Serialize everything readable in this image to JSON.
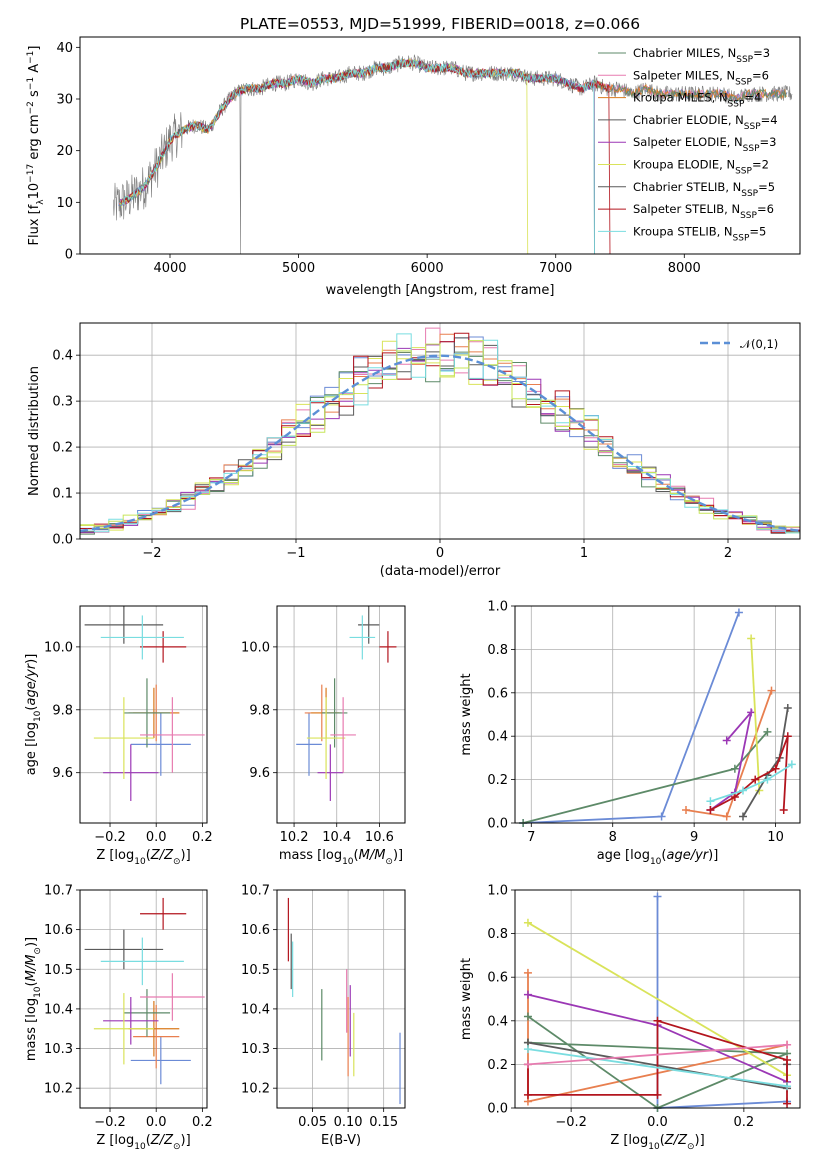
{
  "colors": [
    "#6b8bd6",
    "#e87f4f",
    "#d97a1c",
    "#5d8a68",
    "#9b37b5",
    "#d9e35a",
    "#5a5a5a",
    "#b3151e",
    "#79dde0",
    "#e77bb0",
    "#c7e55a"
  ],
  "chart_data": [
    {
      "id": "spectrum",
      "type": "line",
      "title": "PLATE=0553, MJD=51999, FIBERID=0018, z=0.066",
      "xlabel": "wavelength [Angstrom, rest frame]",
      "ylabel": "Flux [f_λ10^-17 erg cm^-2 s^-1 A^-1]",
      "xlim": [
        3300,
        8900
      ],
      "ylim": [
        0,
        42
      ],
      "xticks": [
        "4000",
        "5000",
        "6000",
        "7000",
        "8000"
      ],
      "yticks": [
        "0",
        "10",
        "20",
        "30",
        "40"
      ],
      "legend": [
        "Chabrier MILES, N_SSP=3",
        "Salpeter MILES, N_SSP=6",
        "Kroupa MILES, N_SSP=4",
        "Chabrier ELODIE, N_SSP=4",
        "Salpeter ELODIE, N_SSP=3",
        "Kroupa ELODIE, N_SSP=2",
        "Chabrier STELIB, N_SSP=5",
        "Salpeter STELIB, N_SSP=6",
        "Kroupa STELIB, N_SSP=5"
      ],
      "continuum": {
        "x": [
          3550,
          3700,
          3800,
          3900,
          4000,
          4100,
          4200,
          4300,
          4400,
          4500,
          4600,
          4700,
          4800,
          4900,
          5000,
          5100,
          5200,
          5300,
          5400,
          5500,
          5600,
          5700,
          5800,
          5900,
          6000,
          6100,
          6200,
          6300,
          6400,
          6500,
          6600,
          6700,
          6800,
          6900,
          7000,
          7100,
          7200,
          7300,
          7400,
          7500,
          7600,
          7700,
          7800,
          7900,
          8000,
          8100,
          8200,
          8300,
          8400,
          8500,
          8600,
          8800
        ],
        "y": [
          9,
          11,
          13,
          17,
          22,
          24,
          25,
          24,
          28,
          31,
          32,
          32,
          33,
          33,
          34,
          33,
          34,
          34,
          35,
          35,
          36,
          36,
          37,
          37,
          36,
          36,
          36,
          35,
          35,
          35,
          35,
          35,
          34,
          34,
          34,
          33,
          32,
          33,
          32,
          32,
          31,
          32,
          31,
          31,
          31,
          31,
          31,
          31,
          30,
          31,
          31,
          31
        ]
      }
    },
    {
      "id": "residuals",
      "type": "histogram",
      "xlabel": "(data-model)/error",
      "ylabel": "Normed distribution",
      "xlim": [
        -2.5,
        2.5
      ],
      "ylim": [
        0,
        0.47
      ],
      "xticks": [
        "−2",
        "−1",
        "0",
        "1",
        "2"
      ],
      "yticks": [
        "0.0",
        "0.1",
        "0.2",
        "0.3",
        "0.4"
      ],
      "legend": [
        "𝒩(0,1)"
      ]
    },
    {
      "id": "age-vs-Z",
      "type": "scatter",
      "xlabel": "Z [log10(Z/Z⊙)]",
      "ylabel": "age  [log10(age/yr)]",
      "xlim": [
        -0.33,
        0.22
      ],
      "ylim": [
        9.44,
        10.13
      ],
      "xticks": [
        "−0.2",
        "0.0",
        "0.2"
      ],
      "yticks": [
        "9.6",
        "9.8",
        "10.0"
      ],
      "points": [
        {
          "x": 0.02,
          "y": 9.69,
          "ex": 0.13,
          "ey": 0.1,
          "c": 0
        },
        {
          "x": 0.0,
          "y": 9.79,
          "ex": 0.1,
          "ey": 0.09,
          "c": 1
        },
        {
          "x": -0.01,
          "y": 9.79,
          "ex": 0.11,
          "ey": 0.08,
          "c": 2
        },
        {
          "x": -0.04,
          "y": 9.79,
          "ex": 0.1,
          "ey": 0.11,
          "c": 3
        },
        {
          "x": -0.11,
          "y": 9.6,
          "ex": 0.12,
          "ey": 0.09,
          "c": 4
        },
        {
          "x": -0.14,
          "y": 9.71,
          "ex": 0.13,
          "ey": 0.13,
          "c": 5
        },
        {
          "x": -0.14,
          "y": 10.07,
          "ex": 0.17,
          "ey": 0.06,
          "c": 6
        },
        {
          "x": 0.03,
          "y": 10.0,
          "ex": 0.1,
          "ey": 0.05,
          "c": 7
        },
        {
          "x": -0.06,
          "y": 10.03,
          "ex": 0.18,
          "ey": 0.07,
          "c": 8
        },
        {
          "x": 0.07,
          "y": 9.72,
          "ex": 0.14,
          "ey": 0.12,
          "c": 9
        }
      ]
    },
    {
      "id": "age-vs-mass",
      "type": "scatter",
      "xlabel": "mass [log10(M/M⊙)]",
      "ylabel": "",
      "xlim": [
        10.12,
        10.72
      ],
      "ylim": [
        9.44,
        10.13
      ],
      "xticks": [
        "10.2",
        "10.4",
        "10.6"
      ],
      "yticks": [
        "9.6",
        "9.8",
        "10.0"
      ],
      "points": [
        {
          "x": 10.27,
          "y": 9.69,
          "ex": 0.06,
          "ey": 0.1,
          "c": 0
        },
        {
          "x": 10.33,
          "y": 9.79,
          "ex": 0.08,
          "ey": 0.09,
          "c": 1
        },
        {
          "x": 10.35,
          "y": 9.79,
          "ex": 0.07,
          "ey": 0.08,
          "c": 2
        },
        {
          "x": 10.39,
          "y": 9.79,
          "ex": 0.06,
          "ey": 0.11,
          "c": 3
        },
        {
          "x": 10.37,
          "y": 9.6,
          "ex": 0.06,
          "ey": 0.09,
          "c": 4
        },
        {
          "x": 10.35,
          "y": 9.71,
          "ex": 0.09,
          "ey": 0.13,
          "c": 5
        },
        {
          "x": 10.55,
          "y": 10.07,
          "ex": 0.05,
          "ey": 0.06,
          "c": 6
        },
        {
          "x": 10.64,
          "y": 10.0,
          "ex": 0.04,
          "ey": 0.05,
          "c": 7
        },
        {
          "x": 10.52,
          "y": 10.03,
          "ex": 0.06,
          "ey": 0.07,
          "c": 8
        },
        {
          "x": 10.43,
          "y": 9.72,
          "ex": 0.06,
          "ey": 0.12,
          "c": 9
        }
      ]
    },
    {
      "id": "weight-vs-age",
      "type": "line",
      "xlabel": "age  [log10(age/yr)]",
      "ylabel": "mass weight",
      "xlim": [
        6.8,
        10.3
      ],
      "ylim": [
        0,
        1.0
      ],
      "xticks": [
        "7",
        "8",
        "9",
        "10"
      ],
      "yticks": [
        "0.0",
        "0.2",
        "0.4",
        "0.6",
        "0.8",
        "1.0"
      ],
      "series": [
        {
          "c": 0,
          "x": [
            6.9,
            8.6,
            9.55
          ],
          "y": [
            0.0,
            0.03,
            0.97
          ]
        },
        {
          "c": 1,
          "x": [
            8.9,
            9.4,
            9.95
          ],
          "y": [
            0.06,
            0.03,
            0.61
          ]
        },
        {
          "c": 3,
          "x": [
            6.9,
            9.5,
            9.9
          ],
          "y": [
            0.0,
            0.25,
            0.42
          ]
        },
        {
          "c": 4,
          "x": [
            9.4,
            9.7,
            9.5,
            9.2
          ],
          "y": [
            0.38,
            0.51,
            0.14,
            0.06
          ]
        },
        {
          "c": 5,
          "x": [
            9.7,
            9.8
          ],
          "y": [
            0.85,
            0.15
          ]
        },
        {
          "c": 6,
          "x": [
            9.6,
            9.9,
            10.05,
            10.15
          ],
          "y": [
            0.03,
            0.22,
            0.3,
            0.53
          ]
        },
        {
          "c": 7,
          "x": [
            9.2,
            9.5,
            9.75,
            10.0,
            10.15,
            10.1
          ],
          "y": [
            0.06,
            0.12,
            0.2,
            0.25,
            0.4,
            0.06
          ]
        },
        {
          "c": 8,
          "x": [
            9.2,
            9.6,
            9.9,
            10.2
          ],
          "y": [
            0.1,
            0.15,
            0.2,
            0.27
          ]
        }
      ]
    },
    {
      "id": "mass-vs-Z",
      "type": "scatter",
      "xlabel": "Z [log10(Z/Z⊙)]",
      "ylabel": "mass [log10(M/M⊙)]",
      "xlim": [
        -0.33,
        0.22
      ],
      "ylim": [
        10.15,
        10.7
      ],
      "xticks": [
        "−0.2",
        "0.0",
        "0.2"
      ],
      "yticks": [
        "10.2",
        "10.3",
        "10.4",
        "10.5",
        "10.6",
        "10.7"
      ],
      "points": [
        {
          "x": 0.02,
          "y": 10.27,
          "ex": 0.13,
          "ey": 0.06,
          "c": 0
        },
        {
          "x": 0.0,
          "y": 10.33,
          "ex": 0.1,
          "ey": 0.08,
          "c": 1
        },
        {
          "x": -0.01,
          "y": 10.35,
          "ex": 0.11,
          "ey": 0.07,
          "c": 2
        },
        {
          "x": -0.04,
          "y": 10.39,
          "ex": 0.1,
          "ey": 0.06,
          "c": 3
        },
        {
          "x": -0.11,
          "y": 10.37,
          "ex": 0.12,
          "ey": 0.06,
          "c": 4
        },
        {
          "x": -0.14,
          "y": 10.35,
          "ex": 0.13,
          "ey": 0.09,
          "c": 5
        },
        {
          "x": -0.14,
          "y": 10.55,
          "ex": 0.17,
          "ey": 0.05,
          "c": 6
        },
        {
          "x": 0.03,
          "y": 10.64,
          "ex": 0.1,
          "ey": 0.04,
          "c": 7
        },
        {
          "x": -0.06,
          "y": 10.52,
          "ex": 0.18,
          "ey": 0.06,
          "c": 8
        },
        {
          "x": 0.07,
          "y": 10.43,
          "ex": 0.14,
          "ey": 0.06,
          "c": 9
        }
      ]
    },
    {
      "id": "mass-vs-EBV",
      "type": "scatter",
      "xlabel": "E(B-V)",
      "ylabel": "",
      "xlim": [
        0.0,
        0.18
      ],
      "ylim": [
        10.15,
        10.7
      ],
      "xticks": [
        "0.05",
        "0.10",
        "0.15"
      ],
      "yticks": [
        "10.2",
        "10.3",
        "10.4",
        "10.5",
        "10.6",
        "10.7"
      ],
      "points": [
        {
          "x": 0.173,
          "y": 10.25,
          "ex": 0,
          "ey": 0.09,
          "c": 0
        },
        {
          "x": 0.1,
          "y": 10.33,
          "ex": 0,
          "ey": 0.1,
          "c": 1
        },
        {
          "x": 0.063,
          "y": 10.36,
          "ex": 0,
          "ey": 0.09,
          "c": 3
        },
        {
          "x": 0.103,
          "y": 10.37,
          "ex": 0,
          "ey": 0.09,
          "c": 4
        },
        {
          "x": 0.108,
          "y": 10.31,
          "ex": 0,
          "ey": 0.08,
          "c": 5
        },
        {
          "x": 0.02,
          "y": 10.52,
          "ex": 0,
          "ey": 0.07,
          "c": 6
        },
        {
          "x": 0.016,
          "y": 10.6,
          "ex": 0,
          "ey": 0.08,
          "c": 7
        },
        {
          "x": 0.022,
          "y": 10.5,
          "ex": 0,
          "ey": 0.07,
          "c": 8
        },
        {
          "x": 0.098,
          "y": 10.42,
          "ex": 0,
          "ey": 0.08,
          "c": 9
        }
      ]
    },
    {
      "id": "weight-vs-Z",
      "type": "line",
      "xlabel": "Z [log10(Z/Z⊙)]",
      "ylabel": "mass weight",
      "xlim": [
        -0.33,
        0.33
      ],
      "ylim": [
        0,
        1.0
      ],
      "xticks": [
        "−0.2",
        "0.0",
        "0.2"
      ],
      "yticks": [
        "0.0",
        "0.2",
        "0.4",
        "0.6",
        "0.8",
        "1.0"
      ],
      "series": [
        {
          "c": 0,
          "x": [
            0.0,
            0.0,
            0.3
          ],
          "y": [
            0.97,
            0.0,
            0.03
          ]
        },
        {
          "c": 1,
          "x": [
            -0.3,
            -0.3,
            0.3
          ],
          "y": [
            0.62,
            0.03,
            0.29
          ]
        },
        {
          "c": 3,
          "x": [
            -0.3,
            0.0,
            0.3,
            -0.3
          ],
          "y": [
            0.42,
            0.0,
            0.25,
            0.3
          ]
        },
        {
          "c": 4,
          "x": [
            -0.3,
            0.0,
            0.3
          ],
          "y": [
            0.52,
            0.38,
            0.12
          ]
        },
        {
          "c": 5,
          "x": [
            -0.3,
            0.3
          ],
          "y": [
            0.85,
            0.15
          ]
        },
        {
          "c": 6,
          "x": [
            -0.3,
            0.3,
            0.3
          ],
          "y": [
            0.3,
            0.09,
            0.2
          ]
        },
        {
          "c": 7,
          "x": [
            -0.3,
            -0.3,
            0.0,
            0.0,
            0.3,
            0.3
          ],
          "y": [
            0.2,
            0.06,
            0.06,
            0.4,
            0.22,
            0.02
          ]
        },
        {
          "c": 8,
          "x": [
            -0.3,
            0.3
          ],
          "y": [
            0.27,
            0.1
          ]
        },
        {
          "c": 9,
          "x": [
            -0.3,
            0.3
          ],
          "y": [
            0.2,
            0.29
          ]
        }
      ]
    }
  ]
}
